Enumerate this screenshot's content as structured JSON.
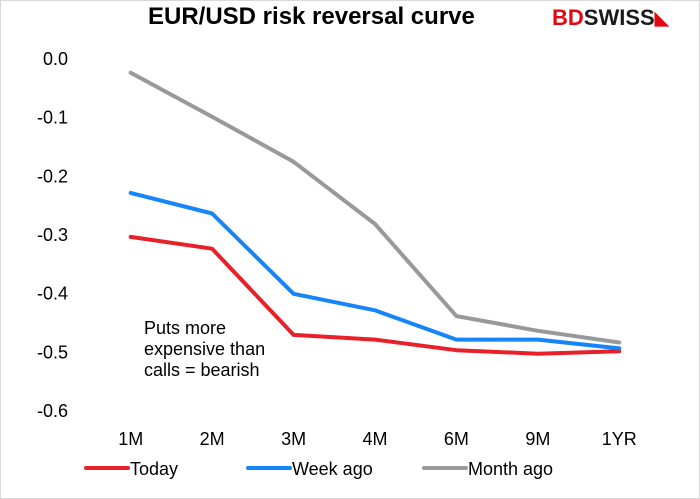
{
  "title": "EUR/USD risk reversal curve",
  "logo": {
    "part1": "BD",
    "part2": "SWISS",
    "mark": "◣"
  },
  "annotation": "Puts more\nexpensive than\ncalls = bearish",
  "chart_data": {
    "type": "line",
    "title": "EUR/USD risk reversal curve",
    "xlabel": "",
    "ylabel": "",
    "categories": [
      "1M",
      "2M",
      "3M",
      "4M",
      "6M",
      "9M",
      "1YR"
    ],
    "ylim": [
      -0.6,
      0.0
    ],
    "yticks": [
      0.0,
      -0.1,
      -0.2,
      -0.3,
      -0.4,
      -0.5,
      -0.6
    ],
    "ytick_labels": [
      "0.0",
      "-0.1",
      "-0.2",
      "-0.3",
      "-0.4",
      "-0.5",
      "-0.6"
    ],
    "grid": false,
    "legend": "bottom",
    "series": [
      {
        "name": "Today",
        "color": "#e8202a",
        "values": [
          -0.305,
          -0.325,
          -0.472,
          -0.48,
          -0.498,
          -0.504,
          -0.5
        ]
      },
      {
        "name": "Week ago",
        "color": "#1685f8",
        "values": [
          -0.23,
          -0.265,
          -0.402,
          -0.43,
          -0.48,
          -0.48,
          -0.495
        ]
      },
      {
        "name": "Month ago",
        "color": "#999999",
        "values": [
          -0.025,
          -0.1,
          -0.177,
          -0.283,
          -0.44,
          -0.465,
          -0.485
        ]
      }
    ]
  }
}
